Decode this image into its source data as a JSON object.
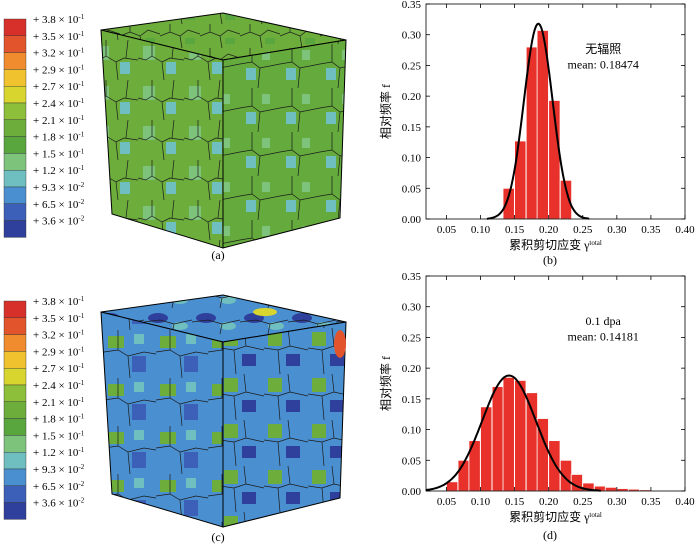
{
  "legend": {
    "colors": [
      "#d7302a",
      "#e2542b",
      "#f08c2d",
      "#f0c22d",
      "#d8d52f",
      "#8dbf3b",
      "#6cad3c",
      "#59a63f",
      "#7ec37c",
      "#6fbec0",
      "#4a8fd0",
      "#3c5fb8",
      "#2f3f9c"
    ],
    "label_mantissa": [
      "3.8",
      "3.5",
      "3.2",
      "2.9",
      "2.7",
      "2.4",
      "2.1",
      "1.8",
      "1.5",
      "1.2",
      "9.3",
      "6.5",
      "3.6"
    ],
    "label_exponent": [
      "-1",
      "-1",
      "-1",
      "-1",
      "-1",
      "-1",
      "-1",
      "-1",
      "-1",
      "-1",
      "-2",
      "-2",
      "-2"
    ],
    "plus": "+",
    "times": "× 10"
  },
  "captions": {
    "a": "(a)",
    "b": "(b)",
    "c": "(c)",
    "d": "(d)"
  },
  "ylabel": "相对频率 f",
  "xlabel": "累积剪切应变 γ",
  "xlabel_sup": "total",
  "chart_data": [
    {
      "type": "bar",
      "annotation": "无辐照",
      "mean_text": "mean: 0.18474",
      "xlim": [
        0.02,
        0.4
      ],
      "ylim": [
        0,
        0.35
      ],
      "xticks": [
        "0.05",
        "0.10",
        "0.15",
        "0.20",
        "0.25",
        "0.30",
        "0.35",
        "0.40"
      ],
      "yticks": [
        "0.00",
        "0.05",
        "0.10",
        "0.15",
        "0.20",
        "0.25",
        "0.30",
        "0.35"
      ],
      "bin_width": 0.01667,
      "bin_starts": [
        0.133,
        0.15,
        0.167,
        0.183,
        0.2,
        0.217
      ],
      "values": [
        0.05,
        0.127,
        0.28,
        0.307,
        0.193,
        0.063
      ],
      "fit_mean": 0.18474,
      "fit_sd": 0.021,
      "fit_peak": 0.318
    },
    {
      "type": "bar",
      "annotation": "0.1 dpa",
      "mean_text": "mean: 0.14181",
      "xlim": [
        0.02,
        0.4
      ],
      "ylim": [
        0,
        0.35
      ],
      "xticks": [
        "0.05",
        "0.10",
        "0.15",
        "0.20",
        "0.25",
        "0.30",
        "0.35",
        "0.40"
      ],
      "yticks": [
        "0.00",
        "0.05",
        "0.10",
        "0.15",
        "0.20",
        "0.25",
        "0.30",
        "0.35"
      ],
      "bin_width": 0.01667,
      "bin_starts": [
        0.05,
        0.067,
        0.083,
        0.1,
        0.117,
        0.133,
        0.15,
        0.167,
        0.183,
        0.2,
        0.217,
        0.233,
        0.25,
        0.267,
        0.283,
        0.3,
        0.317,
        0.333
      ],
      "values": [
        0.015,
        0.05,
        0.082,
        0.137,
        0.17,
        0.185,
        0.18,
        0.16,
        0.118,
        0.082,
        0.05,
        0.027,
        0.013,
        0.008,
        0.006,
        0.004,
        0.003,
        0.002
      ],
      "fit_mean": 0.14181,
      "fit_sd": 0.0395,
      "fit_peak": 0.188
    }
  ]
}
